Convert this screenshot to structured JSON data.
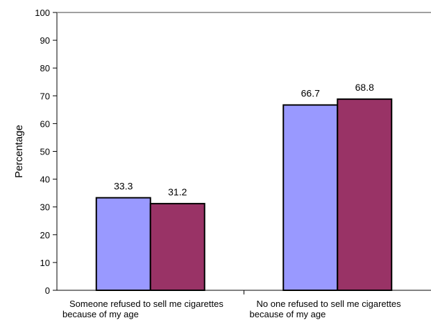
{
  "chart_data": {
    "type": "bar",
    "title": "",
    "xlabel": "",
    "ylabel": "Percentage",
    "ylim": [
      0,
      100
    ],
    "yticks": [
      0,
      10,
      20,
      30,
      40,
      50,
      60,
      70,
      80,
      90,
      100
    ],
    "grid": false,
    "legend": "none",
    "categories": [
      [
        "Someone refused to sell me cigarettes",
        "because of my age"
      ],
      [
        "No one refused to sell me cigarettes",
        "because of my age"
      ]
    ],
    "series": [
      {
        "values": [
          33.3,
          66.7
        ],
        "color": "#9999ff"
      },
      {
        "values": [
          31.2,
          68.8
        ],
        "color": "#993366"
      }
    ],
    "data_labels": [
      [
        "33.3",
        "66.7"
      ],
      [
        "31.2",
        "68.8"
      ]
    ]
  }
}
